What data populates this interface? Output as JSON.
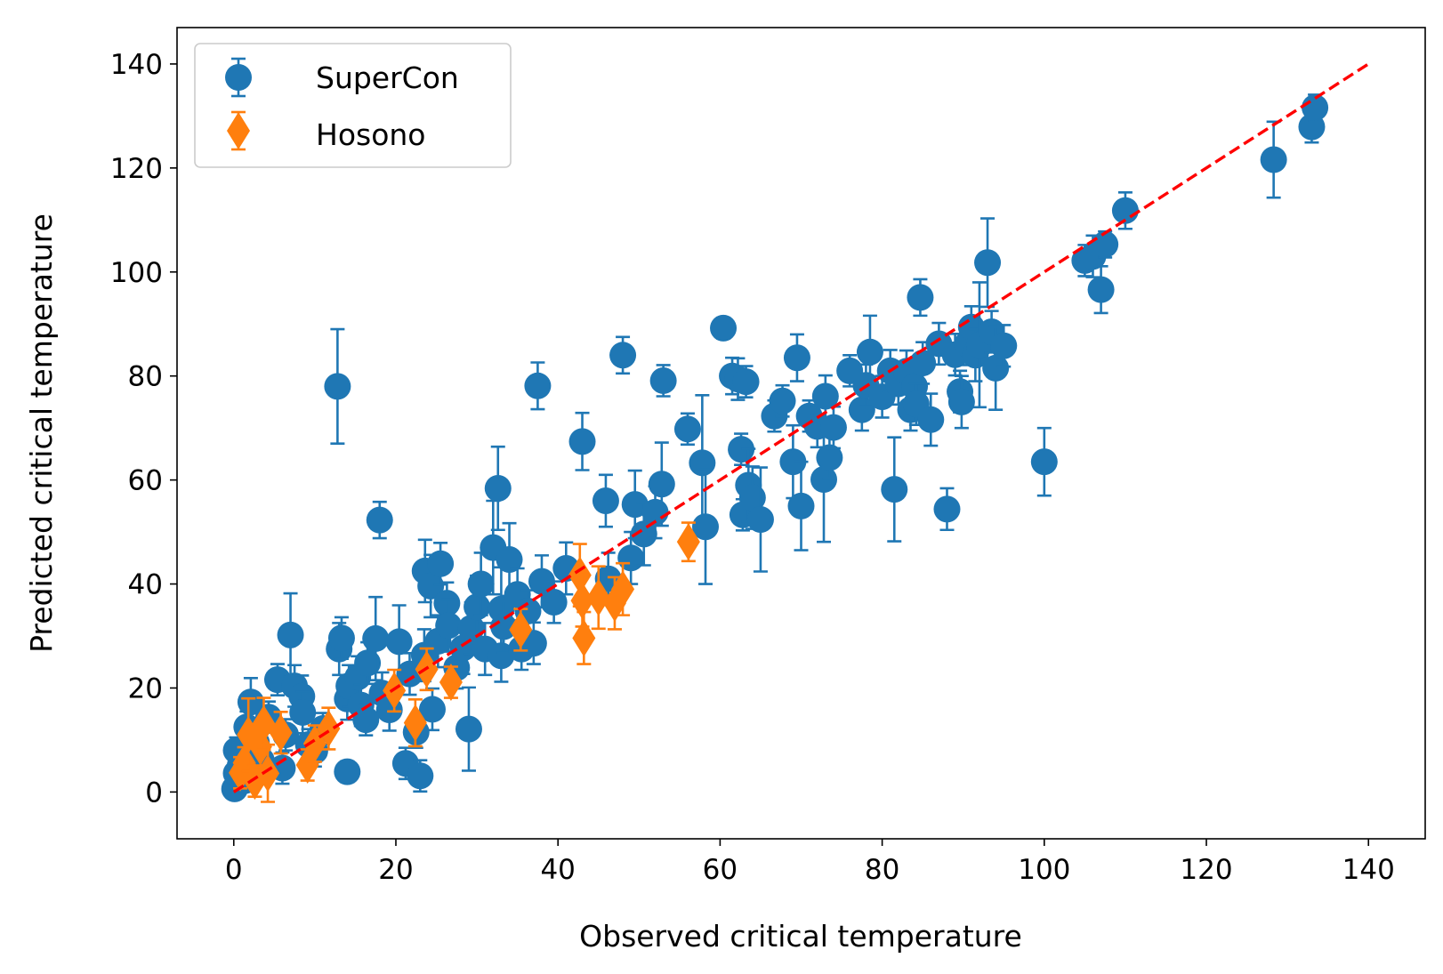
{
  "chart_data": {
    "type": "scatter",
    "xlabel": "Observed critical temperature",
    "ylabel": "Predicted critical temperature",
    "xlim": [
      -7,
      147
    ],
    "ylim": [
      -9,
      147
    ],
    "xticks": [
      0,
      20,
      40,
      60,
      80,
      100,
      120,
      140
    ],
    "yticks": [
      0,
      20,
      40,
      60,
      80,
      100,
      120,
      140
    ],
    "grid": false,
    "legend_position": "top-left",
    "reference_line": {
      "from": [
        0,
        0
      ],
      "to": [
        140,
        140
      ],
      "color": "#ff0000",
      "style": "dashed"
    },
    "series": [
      {
        "name": "SuperCon",
        "marker": "circle",
        "color": "#1f77b4",
        "points": [
          [
            0.1,
            0.6,
            1.5
          ],
          [
            0.3,
            3.6,
            2
          ],
          [
            0.3,
            8.0,
            2.5
          ],
          [
            0.8,
            5.2,
            2
          ],
          [
            1.4,
            2.2,
            2
          ],
          [
            1.6,
            12.5,
            3
          ],
          [
            2.1,
            17.3,
            4.6
          ],
          [
            2.8,
            9.5,
            3
          ],
          [
            3.4,
            6.1,
            2.5
          ],
          [
            4.3,
            14.4,
            3
          ],
          [
            5.4,
            21.6,
            3
          ],
          [
            6.0,
            4.6,
            3
          ],
          [
            6.4,
            11.0,
            3
          ],
          [
            7.0,
            30.2,
            8
          ],
          [
            7.5,
            20.4,
            4
          ],
          [
            8.4,
            18.4,
            4
          ],
          [
            8.5,
            15.3,
            4
          ],
          [
            9.2,
            9.1,
            3
          ],
          [
            10.0,
            7.9,
            3
          ],
          [
            11.0,
            12.2,
            3
          ],
          [
            12.8,
            78.0,
            11
          ],
          [
            13.0,
            27.5,
            5
          ],
          [
            13.3,
            29.6,
            4
          ],
          [
            14.0,
            3.9,
            2
          ],
          [
            14.0,
            17.9,
            4
          ],
          [
            14.2,
            20.4,
            4
          ],
          [
            15.3,
            22.1,
            4
          ],
          [
            15.7,
            16.7,
            4
          ],
          [
            16.3,
            13.9,
            3
          ],
          [
            16.5,
            24.8,
            4
          ],
          [
            17.5,
            29.5,
            8
          ],
          [
            18.0,
            52.3,
            3.5
          ],
          [
            18.3,
            19.0,
            4
          ],
          [
            19.2,
            15.8,
            4
          ],
          [
            20.4,
            28.9,
            7
          ],
          [
            21.2,
            5.5,
            3
          ],
          [
            21.7,
            22.7,
            4
          ],
          [
            22.5,
            11.5,
            3
          ],
          [
            23.0,
            3.1,
            3
          ],
          [
            23.5,
            26.3,
            5
          ],
          [
            23.6,
            42.5,
            6
          ],
          [
            24.3,
            39.6,
            6
          ],
          [
            24.5,
            15.9,
            4
          ],
          [
            25.2,
            29.0,
            5
          ],
          [
            25.5,
            43.9,
            4
          ],
          [
            26.3,
            36.3,
            4
          ],
          [
            26.5,
            32.0,
            5
          ],
          [
            27.5,
            23.9,
            4
          ],
          [
            28.3,
            27.7,
            5
          ],
          [
            29.0,
            12.1,
            8
          ],
          [
            29.3,
            31.5,
            5
          ],
          [
            30.0,
            35.6,
            6
          ],
          [
            30.5,
            40.0,
            6
          ],
          [
            31.0,
            27.5,
            5
          ],
          [
            32.0,
            47.0,
            9
          ],
          [
            32.6,
            58.4,
            8
          ],
          [
            33.0,
            35.2,
            8
          ],
          [
            33.0,
            26.2,
            5
          ],
          [
            33.3,
            31.8,
            5
          ],
          [
            34.0,
            44.7,
            7
          ],
          [
            35.0,
            38.0,
            5
          ],
          [
            35.5,
            27.5,
            4
          ],
          [
            36.3,
            34.8,
            4
          ],
          [
            37.0,
            28.6,
            4
          ],
          [
            37.5,
            78.1,
            4.5
          ],
          [
            38.0,
            40.5,
            5
          ],
          [
            39.5,
            36.5,
            4
          ],
          [
            41.0,
            43.0,
            5
          ],
          [
            43.0,
            67.4,
            5.5
          ],
          [
            45.9,
            56.0,
            5
          ],
          [
            46.2,
            41.0,
            5
          ],
          [
            48.0,
            84.0,
            3.5
          ],
          [
            49.0,
            45.0,
            5
          ],
          [
            49.5,
            55.3,
            6.5
          ],
          [
            50.6,
            49.6,
            6
          ],
          [
            52.0,
            53.8,
            5
          ],
          [
            52.8,
            59.2,
            8
          ],
          [
            53.0,
            79.1,
            3
          ],
          [
            56.0,
            69.8,
            3
          ],
          [
            57.8,
            63.3,
            13
          ],
          [
            58.2,
            51.0,
            11
          ],
          [
            60.4,
            89.2,
            2
          ],
          [
            61.5,
            80.0,
            3.5
          ],
          [
            62.2,
            79.4,
            4
          ],
          [
            62.6,
            65.9,
            3
          ],
          [
            62.8,
            53.3,
            3
          ],
          [
            63.2,
            78.9,
            3
          ],
          [
            63.5,
            59.0,
            7
          ],
          [
            64.0,
            56.6,
            6
          ],
          [
            65.0,
            52.4,
            10
          ],
          [
            66.7,
            72.3,
            3
          ],
          [
            67.7,
            75.2,
            3
          ],
          [
            69.0,
            63.5,
            7
          ],
          [
            69.5,
            83.5,
            4.5
          ],
          [
            70.0,
            55.0,
            8.5
          ],
          [
            71.0,
            72.3,
            3
          ],
          [
            72.0,
            70.3,
            4
          ],
          [
            72.8,
            60.1,
            12
          ],
          [
            73.0,
            76.1,
            4
          ],
          [
            73.5,
            64.3,
            4
          ],
          [
            74.0,
            70.1,
            4
          ],
          [
            76.0,
            81.0,
            3
          ],
          [
            77.5,
            73.5,
            4
          ],
          [
            78.0,
            78.2,
            4
          ],
          [
            78.5,
            84.6,
            7
          ],
          [
            80.0,
            76.0,
            4
          ],
          [
            81.0,
            81.0,
            4
          ],
          [
            81.5,
            58.2,
            10
          ],
          [
            82.0,
            78.5,
            4
          ],
          [
            83.0,
            80.9,
            4
          ],
          [
            83.5,
            73.5,
            4
          ],
          [
            84.0,
            78.0,
            4
          ],
          [
            84.2,
            74.6,
            4
          ],
          [
            84.7,
            95.1,
            3.5
          ],
          [
            85.0,
            82.5,
            4
          ],
          [
            86.0,
            71.6,
            5
          ],
          [
            87.0,
            86.2,
            4
          ],
          [
            88.0,
            54.4,
            4
          ],
          [
            89.0,
            84.1,
            4
          ],
          [
            89.6,
            77.0,
            4
          ],
          [
            89.8,
            75.0,
            5
          ],
          [
            90.5,
            86.1,
            4
          ],
          [
            91.0,
            89.4,
            4
          ],
          [
            91.5,
            84.0,
            5
          ],
          [
            92.0,
            86.0,
            12
          ],
          [
            93.0,
            101.8,
            8.5
          ],
          [
            93.5,
            88.5,
            4
          ],
          [
            94.0,
            81.5,
            8
          ],
          [
            95.0,
            85.8,
            4
          ],
          [
            100.0,
            63.5,
            6.5
          ],
          [
            105.0,
            102.2,
            3
          ],
          [
            106.0,
            103.0,
            4
          ],
          [
            107.0,
            96.6,
            4.5
          ],
          [
            107.5,
            105.3,
            2.5
          ],
          [
            110.0,
            111.8,
            3.5
          ],
          [
            128.3,
            121.6,
            7.3
          ],
          [
            133.0,
            127.9,
            3
          ],
          [
            133.4,
            131.6,
            2.5
          ]
        ]
      },
      {
        "name": "Hosono",
        "marker": "diamond",
        "color": "#ff7f0e",
        "points": [
          [
            0.8,
            3.7,
            3
          ],
          [
            1.3,
            5.6,
            3
          ],
          [
            1.8,
            11.0,
            7
          ],
          [
            2.6,
            2.1,
            3
          ],
          [
            3.3,
            8.7,
            4
          ],
          [
            3.7,
            13.1,
            5
          ],
          [
            4.2,
            3.6,
            5.5
          ],
          [
            5.8,
            11.4,
            4
          ],
          [
            9.1,
            5.2,
            3
          ],
          [
            10.0,
            9.3,
            3.5
          ],
          [
            11.7,
            12.2,
            4
          ],
          [
            19.8,
            19.5,
            4
          ],
          [
            22.4,
            13.3,
            4.5
          ],
          [
            23.8,
            23.6,
            4
          ],
          [
            26.8,
            21.1,
            3
          ],
          [
            35.4,
            31.2,
            4
          ],
          [
            42.7,
            41.7,
            6
          ],
          [
            43.0,
            36.8,
            5
          ],
          [
            43.2,
            29.6,
            5
          ],
          [
            45.0,
            37.4,
            6
          ],
          [
            47.0,
            36.3,
            5
          ],
          [
            48.0,
            39.0,
            5
          ],
          [
            56.1,
            48.1,
            3.7
          ]
        ]
      }
    ]
  }
}
